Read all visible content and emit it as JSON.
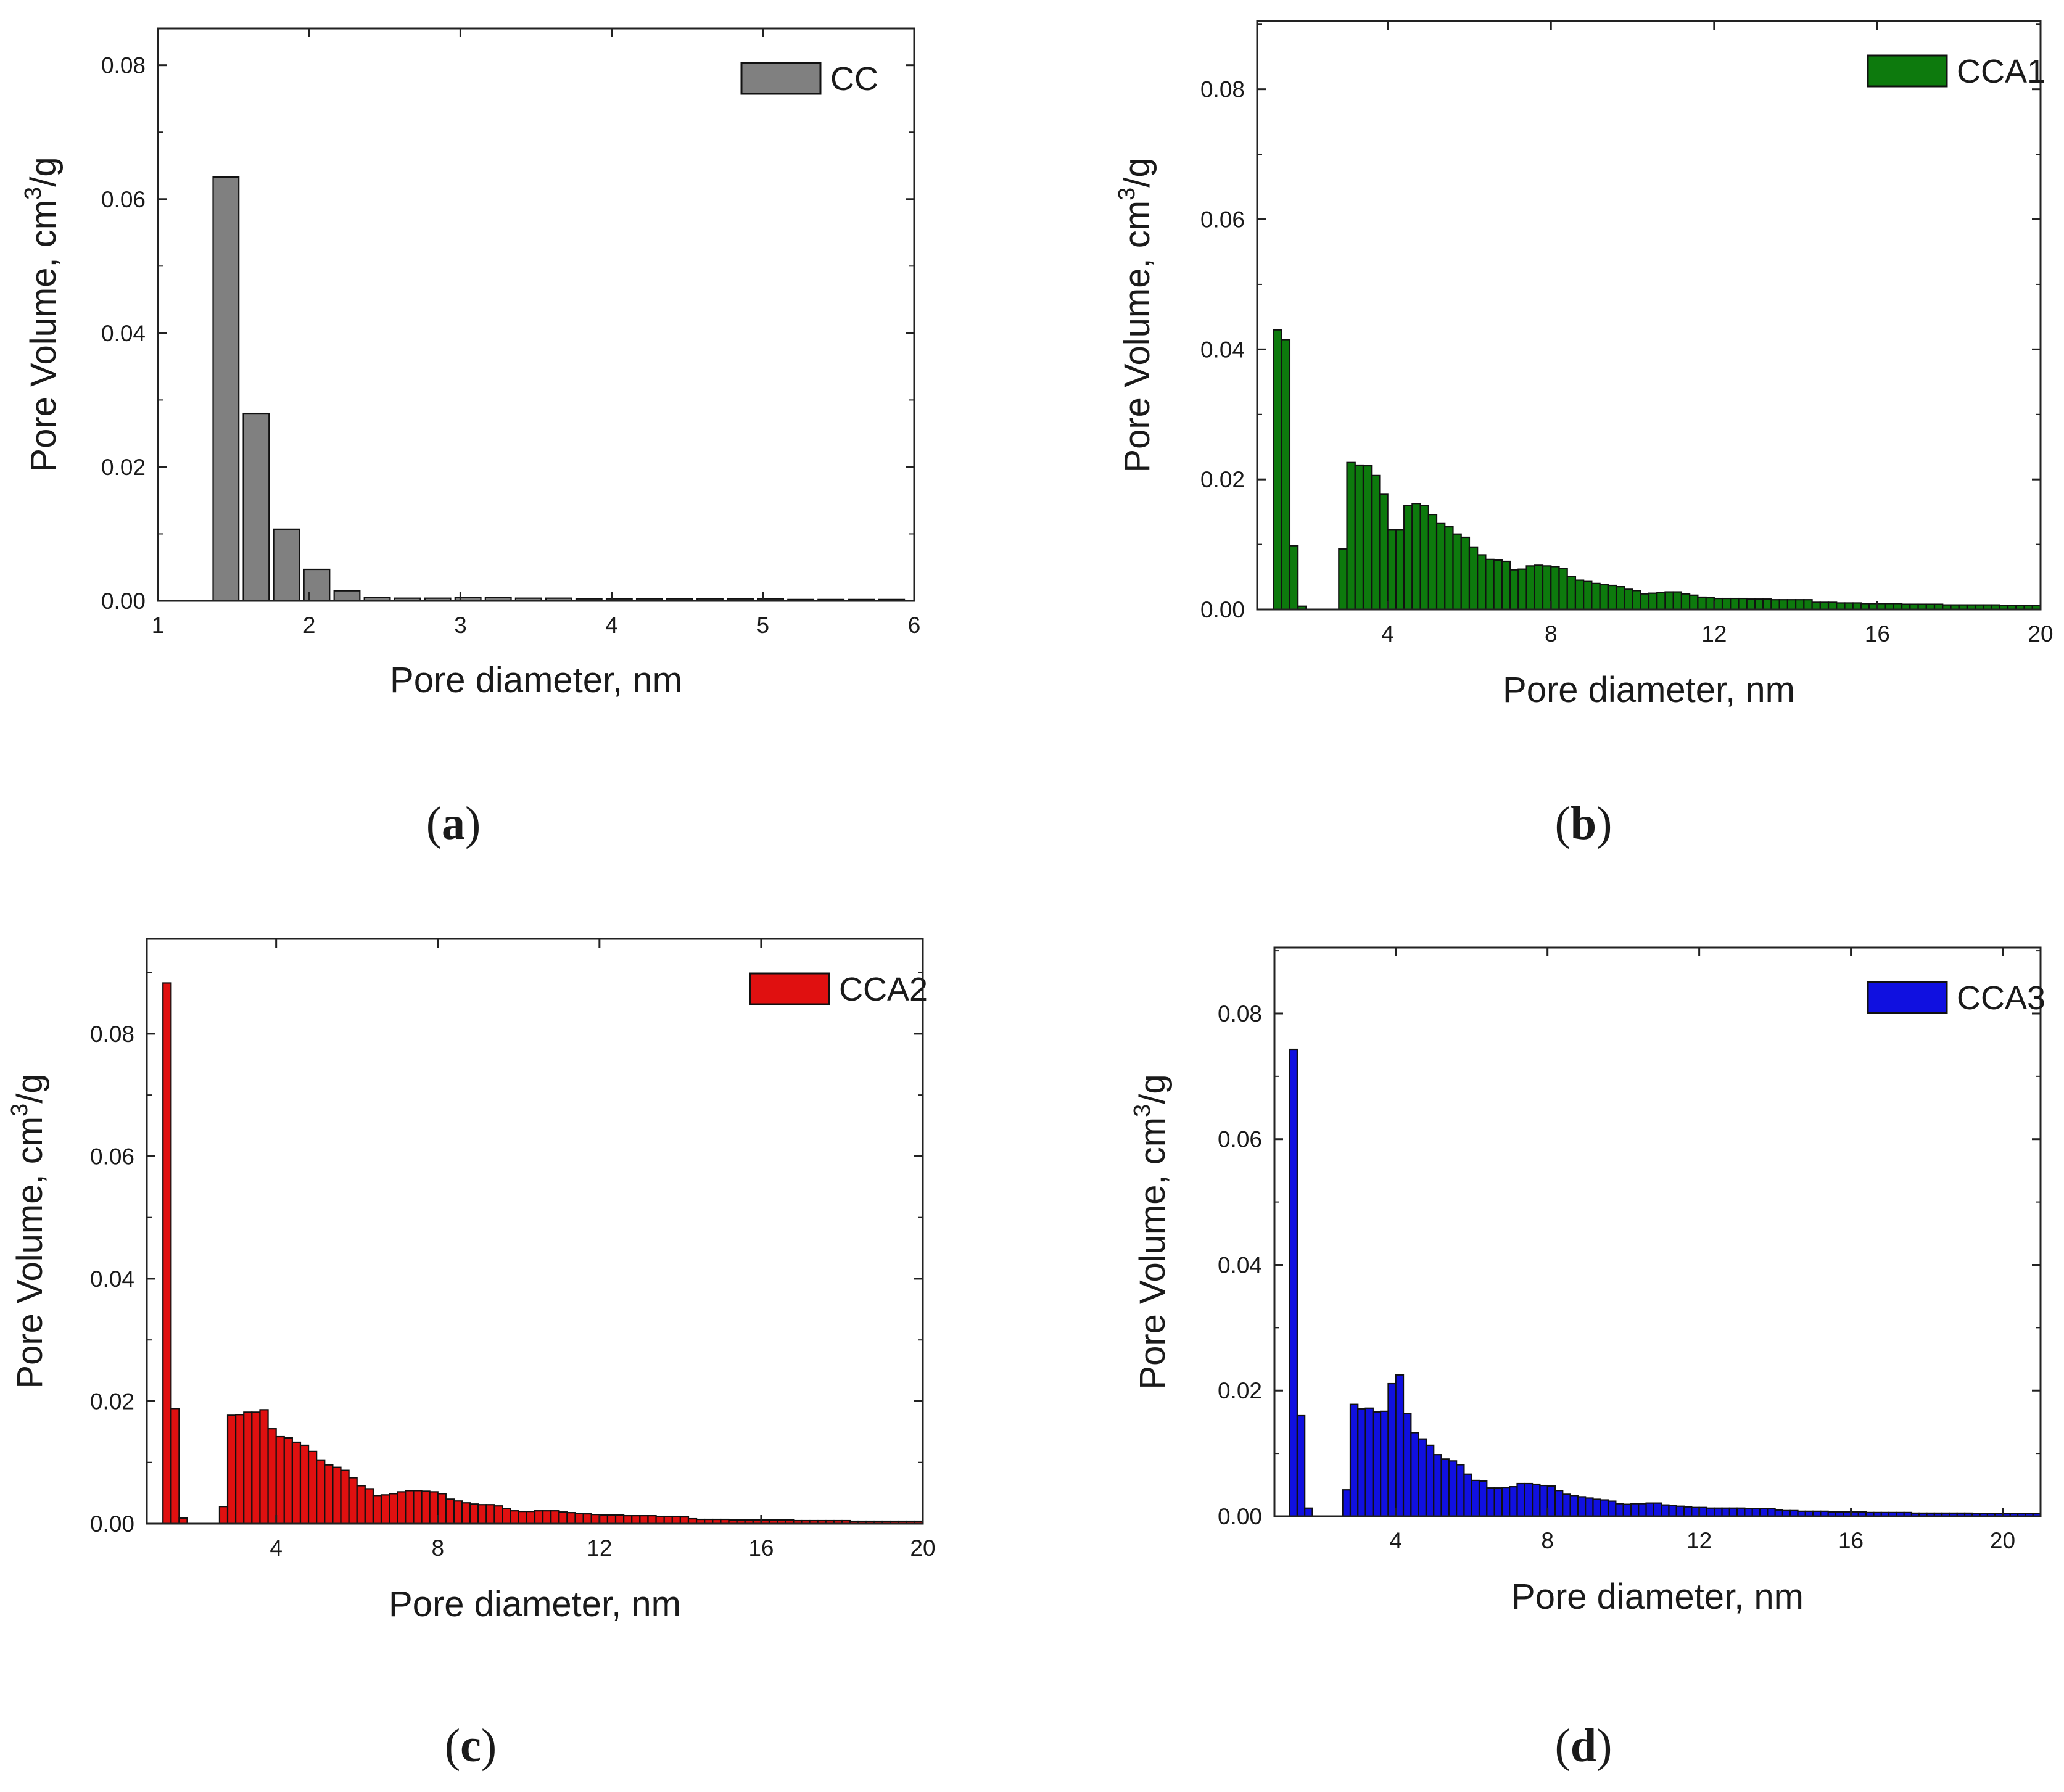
{
  "chart_data": [
    {
      "id": "a",
      "type": "bar",
      "panel_label": "a",
      "xlabel": "Pore diameter, nm",
      "ylabel": "Pore Volume, cm3/g",
      "ylabel_main": "Pore Volume, cm",
      "ylabel_sup": "3",
      "ylabel_tail": "/g",
      "xlim": [
        1,
        6
      ],
      "ylim": [
        0,
        0.0855
      ],
      "xticks": [
        1,
        2,
        3,
        4,
        5,
        6
      ],
      "xtick_labels": [
        "1",
        "2",
        "3",
        "4",
        "5",
        "6"
      ],
      "yticks": [
        0,
        0.02,
        0.04,
        0.06,
        0.08
      ],
      "ytick_labels": [
        "0.00",
        "0.02",
        "0.04",
        "0.06",
        "0.08"
      ],
      "color": "#808080",
      "bar_width": 0.17,
      "legend": {
        "label": "CC",
        "position": "top-right"
      },
      "x": [
        1.45,
        1.65,
        1.85,
        2.05,
        2.25,
        2.45,
        2.65,
        2.85,
        3.05,
        3.25,
        3.45,
        3.65,
        3.85,
        4.05,
        4.25,
        4.45,
        4.65,
        4.85,
        5.05,
        5.25,
        5.45,
        5.65,
        5.85
      ],
      "values": [
        0.0633,
        0.028,
        0.0107,
        0.0047,
        0.0015,
        0.0005,
        0.0004,
        0.0004,
        0.0005,
        0.0005,
        0.0004,
        0.0004,
        0.0003,
        0.0003,
        0.0003,
        0.0003,
        0.0003,
        0.0003,
        0.0003,
        0.0002,
        0.0002,
        0.0002,
        0.0002
      ]
    },
    {
      "id": "b",
      "type": "bar",
      "panel_label": "b",
      "xlabel": "Pore diameter, nm",
      "ylabel": "Pore Volume, cm3/g",
      "ylabel_main": "Pore Volume, cm",
      "ylabel_sup": "3",
      "ylabel_tail": "/g",
      "xlim": [
        0.8,
        20
      ],
      "ylim": [
        0,
        0.0905
      ],
      "xticks": [
        4,
        8,
        12,
        16,
        20
      ],
      "xtick_labels": [
        "4",
        "8",
        "12",
        "16",
        "20"
      ],
      "yticks": [
        0,
        0.02,
        0.04,
        0.06,
        0.08
      ],
      "ytick_labels": [
        "0.00",
        "0.02",
        "0.04",
        "0.06",
        "0.08"
      ],
      "color": "#0d7a0d",
      "bar_width": 0.2,
      "legend": {
        "label": "CCA1",
        "position": "top-right"
      },
      "x": [
        1.3,
        1.5,
        1.7,
        1.9,
        2.1,
        2.3,
        2.5,
        2.7,
        2.9,
        3.1,
        3.3,
        3.5,
        3.7,
        3.9,
        4.1,
        4.3,
        4.5,
        4.7,
        4.9,
        5.1,
        5.3,
        5.5,
        5.7,
        5.9,
        6.1,
        6.3,
        6.5,
        6.7,
        6.9,
        7.1,
        7.3,
        7.5,
        7.7,
        7.9,
        8.1,
        8.3,
        8.5,
        8.7,
        8.9,
        9.1,
        9.3,
        9.5,
        9.7,
        9.9,
        10.1,
        10.3,
        10.5,
        10.7,
        10.9,
        11.1,
        11.3,
        11.5,
        11.7,
        11.9,
        12.1,
        12.3,
        12.5,
        12.7,
        12.9,
        13.1,
        13.3,
        13.5,
        13.7,
        13.9,
        14.1,
        14.3,
        14.5,
        14.7,
        14.9,
        15.1,
        15.3,
        15.5,
        15.7,
        15.9,
        16.1,
        16.3,
        16.5,
        16.7,
        16.9,
        17.1,
        17.3,
        17.5,
        17.7,
        17.9,
        18.1,
        18.3,
        18.5,
        18.7,
        18.9,
        19.1,
        19.3,
        19.5,
        19.7,
        19.9
      ],
      "values": [
        0.043,
        0.0415,
        0.0098,
        0.0005,
        0,
        0,
        0,
        0,
        0.0093,
        0.0226,
        0.0222,
        0.0221,
        0.0206,
        0.0177,
        0.0123,
        0.0123,
        0.016,
        0.0163,
        0.016,
        0.0146,
        0.0132,
        0.0127,
        0.0116,
        0.0111,
        0.0096,
        0.0084,
        0.0077,
        0.0076,
        0.0074,
        0.0061,
        0.0062,
        0.0067,
        0.0068,
        0.0067,
        0.0066,
        0.0063,
        0.0051,
        0.0045,
        0.0043,
        0.004,
        0.0038,
        0.0037,
        0.0035,
        0.0031,
        0.0029,
        0.0024,
        0.0025,
        0.0026,
        0.0027,
        0.0027,
        0.0024,
        0.0022,
        0.0019,
        0.0018,
        0.0017,
        0.0017,
        0.0017,
        0.0017,
        0.0016,
        0.0016,
        0.0016,
        0.0015,
        0.0015,
        0.0015,
        0.0015,
        0.0015,
        0.0011,
        0.0011,
        0.0011,
        0.001,
        0.001,
        0.001,
        0.0009,
        0.0009,
        0.0009,
        0.0009,
        0.0009,
        0.0008,
        0.0008,
        0.0008,
        0.0008,
        0.0008,
        0.0007,
        0.0007,
        0.0007,
        0.0007,
        0.0007,
        0.0007,
        0.0007,
        0.0006,
        0.0006,
        0.0006,
        0.0006,
        0.0006
      ]
    },
    {
      "id": "c",
      "type": "bar",
      "panel_label": "c",
      "xlabel": "Pore diameter, nm",
      "ylabel": "Pore Volume, cm3/g",
      "ylabel_main": "Pore Volume, cm",
      "ylabel_sup": "3",
      "ylabel_tail": "/g",
      "xlim": [
        0.8,
        20
      ],
      "ylim": [
        0,
        0.0955
      ],
      "xticks": [
        4,
        8,
        12,
        16,
        20
      ],
      "xtick_labels": [
        "4",
        "8",
        "12",
        "16",
        "20"
      ],
      "yticks": [
        0,
        0.02,
        0.04,
        0.06,
        0.08
      ],
      "ytick_labels": [
        "0.00",
        "0.02",
        "0.04",
        "0.06",
        "0.08"
      ],
      "color": "#e01010",
      "bar_width": 0.2,
      "legend": {
        "label": "CCA2",
        "position": "top-right"
      },
      "x": [
        1.3,
        1.5,
        1.7,
        1.9,
        2.1,
        2.3,
        2.5,
        2.7,
        2.9,
        3.1,
        3.3,
        3.5,
        3.7,
        3.9,
        4.1,
        4.3,
        4.5,
        4.7,
        4.9,
        5.1,
        5.3,
        5.5,
        5.7,
        5.9,
        6.1,
        6.3,
        6.5,
        6.7,
        6.9,
        7.1,
        7.3,
        7.5,
        7.7,
        7.9,
        8.1,
        8.3,
        8.5,
        8.7,
        8.9,
        9.1,
        9.3,
        9.5,
        9.7,
        9.9,
        10.1,
        10.3,
        10.5,
        10.7,
        10.9,
        11.1,
        11.3,
        11.5,
        11.7,
        11.9,
        12.1,
        12.3,
        12.5,
        12.7,
        12.9,
        13.1,
        13.3,
        13.5,
        13.7,
        13.9,
        14.1,
        14.3,
        14.5,
        14.7,
        14.9,
        15.1,
        15.3,
        15.5,
        15.7,
        15.9,
        16.1,
        16.3,
        16.5,
        16.7,
        16.9,
        17.1,
        17.3,
        17.5,
        17.7,
        17.9,
        18.1,
        18.3,
        18.5,
        18.7,
        18.9,
        19.1,
        19.3,
        19.5,
        19.7,
        19.9
      ],
      "values": [
        0.0883,
        0.0188,
        0.0009,
        0,
        0,
        0,
        0,
        0.0028,
        0.0177,
        0.0178,
        0.0182,
        0.0182,
        0.0186,
        0.0155,
        0.0142,
        0.014,
        0.0133,
        0.0128,
        0.0118,
        0.0104,
        0.0096,
        0.0092,
        0.0087,
        0.0075,
        0.0062,
        0.0057,
        0.0046,
        0.0047,
        0.0049,
        0.0052,
        0.0054,
        0.0054,
        0.0053,
        0.0052,
        0.0049,
        0.004,
        0.0037,
        0.0034,
        0.0032,
        0.0031,
        0.0031,
        0.0029,
        0.0025,
        0.0021,
        0.002,
        0.002,
        0.0021,
        0.0021,
        0.0021,
        0.0019,
        0.0018,
        0.0017,
        0.0016,
        0.0015,
        0.0014,
        0.0014,
        0.0014,
        0.0013,
        0.0013,
        0.0013,
        0.0013,
        0.0012,
        0.0012,
        0.0012,
        0.0011,
        0.0008,
        0.0007,
        0.0007,
        0.0007,
        0.0007,
        0.0006,
        0.0006,
        0.0006,
        0.0006,
        0.0006,
        0.0006,
        0.0006,
        0.0006,
        0.0005,
        0.0005,
        0.0005,
        0.0005,
        0.0005,
        0.0005,
        0.0005,
        0.0004,
        0.0004,
        0.0004,
        0.0004,
        0.0004,
        0.0004,
        0.0004,
        0.0004,
        0.0004
      ]
    },
    {
      "id": "d",
      "type": "bar",
      "panel_label": "d",
      "xlabel": "Pore diameter, nm",
      "ylabel": "Pore Volume, cm3/g",
      "ylabel_main": "Pore Volume, cm",
      "ylabel_sup": "3",
      "ylabel_tail": "/g",
      "xlim": [
        0.8,
        21
      ],
      "ylim": [
        0,
        0.0905
      ],
      "xticks": [
        4,
        8,
        12,
        16,
        20
      ],
      "xtick_labels": [
        "4",
        "8",
        "12",
        "16",
        "20"
      ],
      "yticks": [
        0,
        0.02,
        0.04,
        0.06,
        0.08
      ],
      "ytick_labels": [
        "0.00",
        "0.02",
        "0.04",
        "0.06",
        "0.08"
      ],
      "color": "#1010e0",
      "bar_width": 0.2,
      "legend": {
        "label": "CCA3",
        "position": "top-right"
      },
      "x": [
        1.3,
        1.5,
        1.7,
        1.9,
        2.1,
        2.3,
        2.5,
        2.7,
        2.9,
        3.1,
        3.3,
        3.5,
        3.7,
        3.9,
        4.1,
        4.3,
        4.5,
        4.7,
        4.9,
        5.1,
        5.3,
        5.5,
        5.7,
        5.9,
        6.1,
        6.3,
        6.5,
        6.7,
        6.9,
        7.1,
        7.3,
        7.5,
        7.7,
        7.9,
        8.1,
        8.3,
        8.5,
        8.7,
        8.9,
        9.1,
        9.3,
        9.5,
        9.7,
        9.9,
        10.1,
        10.3,
        10.5,
        10.7,
        10.9,
        11.1,
        11.3,
        11.5,
        11.7,
        11.9,
        12.1,
        12.3,
        12.5,
        12.7,
        12.9,
        13.1,
        13.3,
        13.5,
        13.7,
        13.9,
        14.1,
        14.3,
        14.5,
        14.7,
        14.9,
        15.1,
        15.3,
        15.5,
        15.7,
        15.9,
        16.1,
        16.3,
        16.5,
        16.7,
        16.9,
        17.1,
        17.3,
        17.5,
        17.7,
        17.9,
        18.1,
        18.3,
        18.5,
        18.7,
        18.9,
        19.1,
        19.3,
        19.5,
        19.7,
        19.9,
        20.1,
        20.3,
        20.5,
        20.7,
        20.9
      ],
      "values": [
        0.0743,
        0.016,
        0.0013,
        0,
        0,
        0,
        0,
        0.0042,
        0.0178,
        0.0171,
        0.0172,
        0.0166,
        0.0167,
        0.0211,
        0.0225,
        0.0163,
        0.0133,
        0.0123,
        0.0113,
        0.0098,
        0.0091,
        0.0088,
        0.0082,
        0.0067,
        0.0057,
        0.0056,
        0.0045,
        0.0045,
        0.0046,
        0.0047,
        0.0052,
        0.0052,
        0.0051,
        0.0049,
        0.0048,
        0.0041,
        0.0035,
        0.0033,
        0.0031,
        0.0029,
        0.0027,
        0.0026,
        0.0024,
        0.002,
        0.0019,
        0.002,
        0.002,
        0.0021,
        0.0021,
        0.0018,
        0.0017,
        0.0016,
        0.0015,
        0.0014,
        0.0014,
        0.0013,
        0.0013,
        0.0013,
        0.0013,
        0.0013,
        0.0012,
        0.0012,
        0.0012,
        0.0012,
        0.001,
        0.0009,
        0.0009,
        0.0008,
        0.0008,
        0.0008,
        0.0008,
        0.0007,
        0.0007,
        0.0007,
        0.0007,
        0.0007,
        0.0006,
        0.0006,
        0.0006,
        0.0006,
        0.0006,
        0.0006,
        0.0005,
        0.0005,
        0.0005,
        0.0005,
        0.0005,
        0.0005,
        0.0005,
        0.0005,
        0.0004,
        0.0004,
        0.0004,
        0.0004,
        0.0004,
        0.0004,
        0.0004,
        0.0004,
        0.0004
      ]
    }
  ]
}
